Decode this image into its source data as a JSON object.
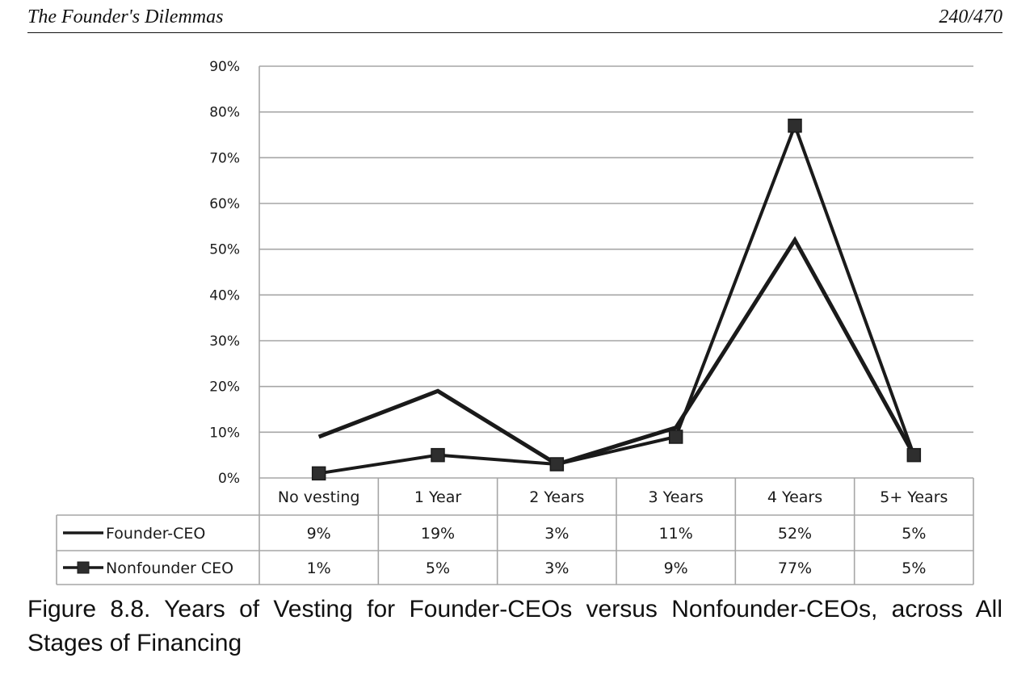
{
  "header": {
    "book_title": "The Founder's Dilemmas",
    "page_number": "240/470"
  },
  "caption": "Figure 8.8. Years of Vesting for Founder-CEOs versus Nonfounder-CEOs, across All Stages of Financing",
  "chart_data": {
    "type": "line",
    "categories": [
      "No vesting",
      "1 Year",
      "2 Years",
      "3 Years",
      "4 Years",
      "5+ Years"
    ],
    "y_ticks": [
      "0%",
      "10%",
      "20%",
      "30%",
      "40%",
      "50%",
      "60%",
      "70%",
      "80%",
      "90%"
    ],
    "ylim": [
      0,
      90
    ],
    "grid": true,
    "legend_placement": "data-table",
    "series": [
      {
        "name": "Founder-CEO",
        "marker": "none",
        "values": [
          9,
          19,
          3,
          11,
          52,
          5
        ],
        "labels": [
          "9%",
          "19%",
          "3%",
          "11%",
          "52%",
          "5%"
        ]
      },
      {
        "name": "Nonfounder CEO",
        "marker": "square",
        "values": [
          1,
          5,
          3,
          9,
          77,
          5
        ],
        "labels": [
          "1%",
          "5%",
          "3%",
          "9%",
          "77%",
          "5%"
        ]
      }
    ]
  },
  "colors": {
    "line": "#1a1a1a",
    "grid": "#a6a6a6",
    "marker": "#2e2e2e"
  }
}
